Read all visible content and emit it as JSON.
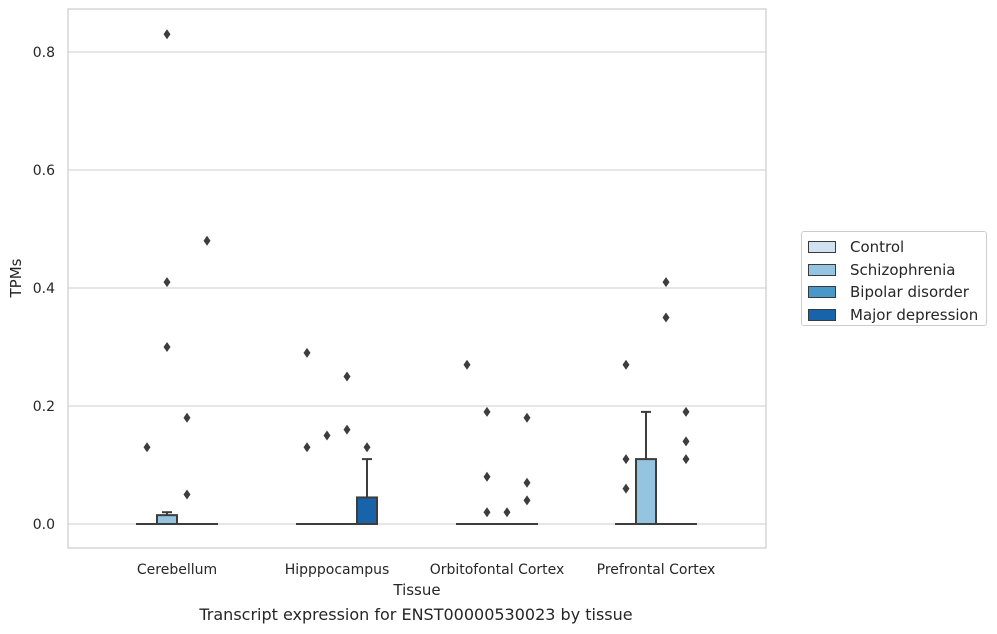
{
  "chart_data": {
    "type": "box",
    "title": "",
    "caption": "Transcript expression for ENST00000530023 by tissue",
    "xlabel": "Tissue",
    "ylabel": "TPMs",
    "ylim": [
      -0.04,
      0.875
    ],
    "yticks": [
      0.0,
      0.2,
      0.4,
      0.6,
      0.8
    ],
    "ytick_labels": [
      "0.0",
      "0.2",
      "0.4",
      "0.6",
      "0.8"
    ],
    "grid": true,
    "legend_position": "right-center",
    "categories": [
      "Cerebellum",
      "Hipppocampus",
      "Orbitofontal Cortex",
      "Prefrontal Cortex"
    ],
    "series": [
      {
        "name": "Control",
        "color": "#d0e1f2",
        "boxes": [
          {
            "category": "Cerebellum",
            "q1": 0,
            "median": 0,
            "q3": 0,
            "whisker_low": 0,
            "whisker_high": 0,
            "outliers": [
              0.13
            ]
          },
          {
            "category": "Hipppocampus",
            "q1": 0,
            "median": 0,
            "q3": 0,
            "whisker_low": 0,
            "whisker_high": 0,
            "outliers": [
              0.29,
              0.13
            ]
          },
          {
            "category": "Orbitofontal Cortex",
            "q1": 0,
            "median": 0,
            "q3": 0,
            "whisker_low": 0,
            "whisker_high": 0,
            "outliers": [
              0.27
            ]
          },
          {
            "category": "Prefrontal Cortex",
            "q1": 0,
            "median": 0,
            "q3": 0,
            "whisker_low": 0,
            "whisker_high": 0,
            "outliers": [
              0.27,
              0.11,
              0.06
            ]
          }
        ]
      },
      {
        "name": "Schizophrenia",
        "color": "#94c4df",
        "boxes": [
          {
            "category": "Cerebellum",
            "q1": 0,
            "median": 0,
            "q3": 0.015,
            "whisker_low": 0,
            "whisker_high": 0.02,
            "outliers": [
              0.83,
              0.41,
              0.3
            ]
          },
          {
            "category": "Hipppocampus",
            "q1": 0,
            "median": 0,
            "q3": 0,
            "whisker_low": 0,
            "whisker_high": 0,
            "outliers": [
              0.15
            ]
          },
          {
            "category": "Orbitofontal Cortex",
            "q1": 0,
            "median": 0,
            "q3": 0,
            "whisker_low": 0,
            "whisker_high": 0,
            "outliers": [
              0.19,
              0.08,
              0.02
            ]
          },
          {
            "category": "Prefrontal Cortex",
            "q1": 0,
            "median": 0,
            "q3": 0.11,
            "whisker_low": 0,
            "whisker_high": 0.19,
            "outliers": []
          }
        ]
      },
      {
        "name": "Bipolar disorder",
        "color": "#4a98c9",
        "boxes": [
          {
            "category": "Cerebellum",
            "q1": 0,
            "median": 0,
            "q3": 0,
            "whisker_low": 0,
            "whisker_high": 0,
            "outliers": [
              0.18,
              0.05
            ]
          },
          {
            "category": "Hipppocampus",
            "q1": 0,
            "median": 0,
            "q3": 0,
            "whisker_low": 0,
            "whisker_high": 0,
            "outliers": [
              0.25,
              0.16
            ]
          },
          {
            "category": "Orbitofontal Cortex",
            "q1": 0,
            "median": 0,
            "q3": 0,
            "whisker_low": 0,
            "whisker_high": 0,
            "outliers": [
              0.02
            ]
          },
          {
            "category": "Prefrontal Cortex",
            "q1": 0,
            "median": 0,
            "q3": 0,
            "whisker_low": 0,
            "whisker_high": 0,
            "outliers": [
              0.41,
              0.35
            ]
          }
        ]
      },
      {
        "name": "Major depression",
        "color": "#1764ab",
        "boxes": [
          {
            "category": "Cerebellum",
            "q1": 0,
            "median": 0,
            "q3": 0,
            "whisker_low": 0,
            "whisker_high": 0,
            "outliers": [
              0.48
            ]
          },
          {
            "category": "Hipppocampus",
            "q1": 0,
            "median": 0,
            "q3": 0.045,
            "whisker_low": 0,
            "whisker_high": 0.11,
            "outliers": [
              0.13
            ]
          },
          {
            "category": "Orbitofontal Cortex",
            "q1": 0,
            "median": 0,
            "q3": 0,
            "whisker_low": 0,
            "whisker_high": 0,
            "outliers": [
              0.18,
              0.07,
              0.04
            ]
          },
          {
            "category": "Prefrontal Cortex",
            "q1": 0,
            "median": 0,
            "q3": 0,
            "whisker_low": 0,
            "whisker_high": 0,
            "outliers": [
              0.19,
              0.14,
              0.11
            ]
          }
        ]
      }
    ]
  }
}
